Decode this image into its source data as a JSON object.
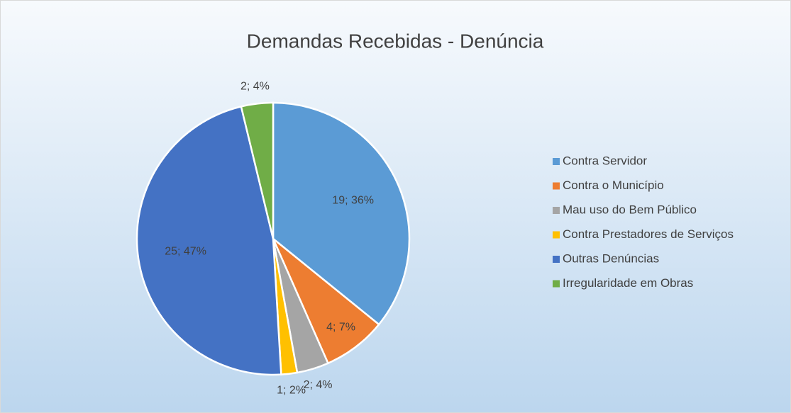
{
  "chart_data": {
    "type": "pie",
    "title": "Demandas Recebidas - Denúncia",
    "categories": [
      "Contra Servidor",
      "Contra o Município",
      "Mau uso do Bem Público",
      "Contra Prestadores de Serviços",
      "Outras Denúncias",
      "Irregularidade em Obras"
    ],
    "values": [
      19,
      4,
      2,
      1,
      25,
      2
    ],
    "value_labels": [
      "19; 36%",
      "4; 7%",
      "2; 4%",
      "1; 2%",
      "25; 47%",
      "2; 4%"
    ],
    "colors": [
      "#5b9bd5",
      "#ed7d31",
      "#a5a5a5",
      "#ffc000",
      "#4472c4",
      "#70ad47"
    ],
    "legend": "right"
  }
}
